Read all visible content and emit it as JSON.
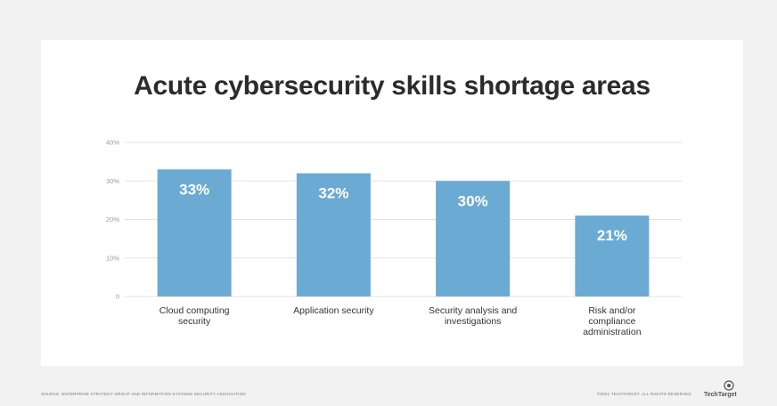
{
  "chart_data": {
    "type": "bar",
    "title": "Acute cybersecurity skills shortage areas",
    "categories": [
      [
        "Cloud computing",
        "security"
      ],
      [
        "Application security"
      ],
      [
        "Security analysis and",
        "investigations"
      ],
      [
        "Risk and/or",
        "compliance",
        "administration"
      ]
    ],
    "values": [
      33,
      32,
      30,
      21
    ],
    "data_labels": [
      "33%",
      "32%",
      "30%",
      "21%"
    ],
    "y_ticks": [
      "0",
      "10%",
      "20%",
      "30%",
      "40%"
    ],
    "ylim": [
      0,
      40
    ],
    "grid": true,
    "bar_color": "#6aaad3",
    "label_color": "#ffffff"
  },
  "footer": {
    "source": "SOURCE: ENTERPRISE STRATEGY GROUP AND INFORMATION SYSTEMS SECURITY ASSOCIATION",
    "copyright": "©2021 TECHTARGET. ALL RIGHTS RESERVED",
    "brand": "TechTarget"
  }
}
